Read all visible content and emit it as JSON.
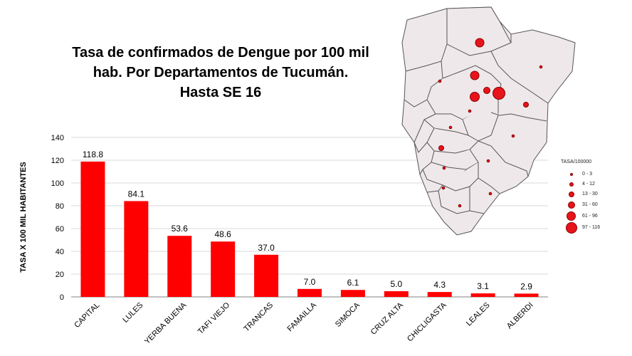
{
  "title": {
    "line1": "Tasa de confirmados de Dengue por 100 mil",
    "line2": "hab. Por Departamentos de Tucumán.",
    "line3": "Hasta SE 16"
  },
  "chart_data": {
    "type": "bar",
    "categories": [
      "CAPITAL",
      "LULES",
      "YERBA BUENA",
      "TAFI VIEJO",
      "TRANCAS",
      "FAMAILLA",
      "SIMOCA",
      "CRUZ ALTA",
      "CHICLIGASTA",
      "LEALES",
      "ALBERDI"
    ],
    "values": [
      118.8,
      84.1,
      53.6,
      48.6,
      37.0,
      7.0,
      6.1,
      5.0,
      4.3,
      3.1,
      2.9
    ],
    "value_labels": [
      "118.8",
      "84.1",
      "53.6",
      "48.6",
      "37.0",
      "7.0",
      "6.1",
      "5.0",
      "4.3",
      "3.1",
      "2.9"
    ],
    "ylabel": "TASA X 100 MIL HABITANTES",
    "xlabel": "",
    "ylim": [
      0,
      140
    ],
    "yticks": [
      0,
      20,
      40,
      60,
      80,
      100,
      120,
      140
    ],
    "grid": true,
    "bar_color": "#ff0000"
  },
  "map": {
    "legend_title": "TASA/100000",
    "legend_items": [
      "0 - 3",
      "4 - 12",
      "13 - 30",
      "31 - 60",
      "61 - 96",
      "97 - 116"
    ],
    "fill_color": "#efe8ea",
    "dot_color": "#e8141b"
  }
}
